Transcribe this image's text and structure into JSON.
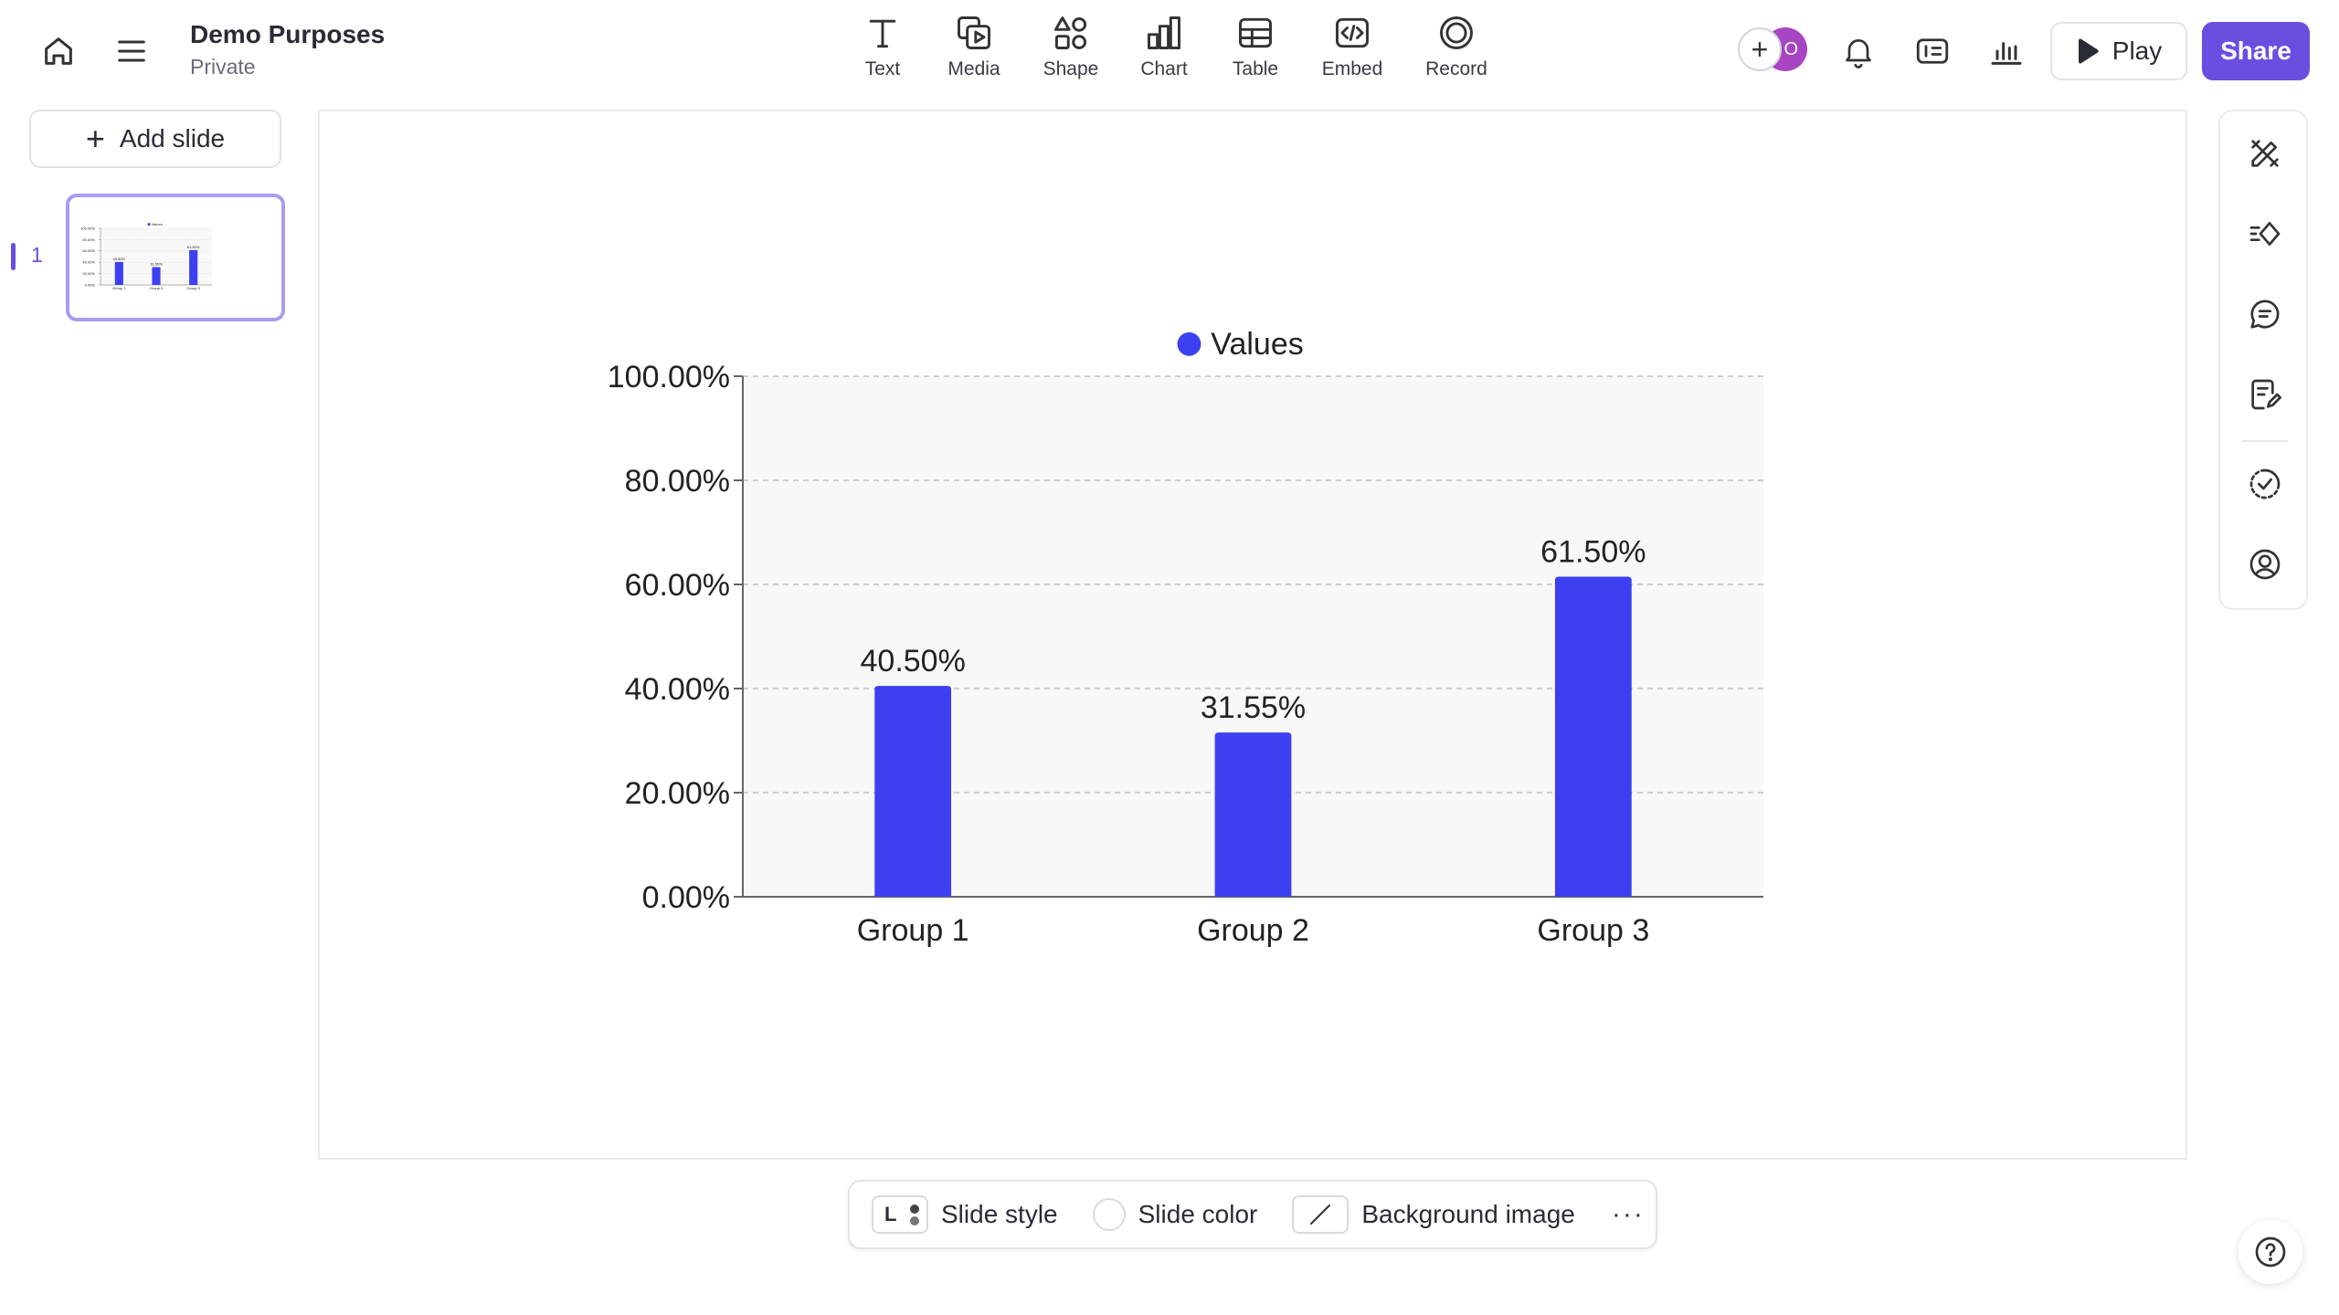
{
  "header": {
    "doc_title": "Demo Purposes",
    "doc_visibility": "Private",
    "tools": [
      {
        "label": "Text",
        "icon": "text-icon"
      },
      {
        "label": "Media",
        "icon": "media-icon"
      },
      {
        "label": "Shape",
        "icon": "shape-icon"
      },
      {
        "label": "Chart",
        "icon": "chart-icon"
      },
      {
        "label": "Table",
        "icon": "table-icon"
      },
      {
        "label": "Embed",
        "icon": "embed-icon"
      },
      {
        "label": "Record",
        "icon": "record-icon"
      }
    ],
    "avatar_plus": "+",
    "avatar_initial": "O",
    "play_label": "Play",
    "share_label": "Share"
  },
  "sidebar": {
    "add_slide_label": "Add slide",
    "slides": [
      {
        "number": "1"
      }
    ]
  },
  "bottombar": {
    "style_letter": "L",
    "slide_style_label": "Slide style",
    "slide_color_label": "Slide color",
    "background_image_label": "Background image",
    "more_label": "···"
  },
  "colors": {
    "accent": "#6b4ee0",
    "bar": "#3d3ff0"
  },
  "chart_data": {
    "type": "bar",
    "categories": [
      "Group 1",
      "Group 2",
      "Group 3"
    ],
    "series": [
      {
        "name": "Values",
        "values": [
          40.5,
          31.55,
          61.5
        ]
      }
    ],
    "data_labels": [
      "40.50%",
      "31.55%",
      "61.50%"
    ],
    "yticks": [
      "0.00%",
      "20.00%",
      "40.00%",
      "60.00%",
      "80.00%",
      "100.00%"
    ],
    "ylim": [
      0,
      100
    ],
    "grid": true,
    "legend_placement": "top-center",
    "title": "",
    "xlabel": "",
    "ylabel": ""
  }
}
